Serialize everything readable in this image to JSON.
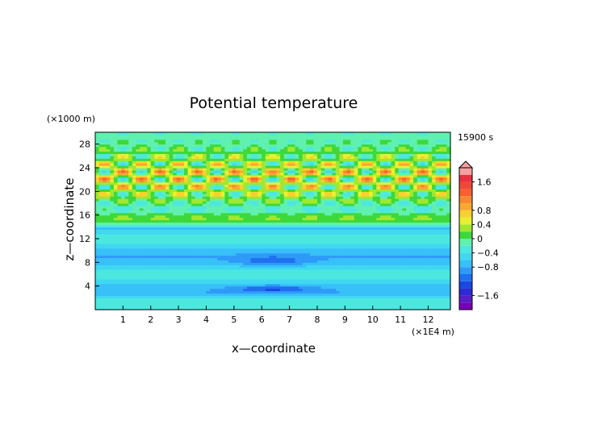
{
  "chart_data": {
    "type": "heatmap",
    "title": "Potential temperature",
    "xlabel": "x—coordinate",
    "ylabel": "z—coordinate",
    "x_unit": "(×1E4 m)",
    "y_unit": "(×1000 m)",
    "time_label": "15900 s",
    "xlim": [
      0,
      12.8
    ],
    "ylim": [
      0,
      30
    ],
    "x_ticks": [
      1,
      2,
      3,
      4,
      5,
      6,
      7,
      8,
      9,
      10,
      11,
      12
    ],
    "y_ticks": [
      4,
      8,
      12,
      16,
      20,
      24,
      28
    ],
    "grid": false,
    "colorbar": {
      "levels": [
        -2.0,
        -1.8,
        -1.6,
        -1.4,
        -1.2,
        -1.0,
        -0.8,
        -0.6,
        -0.4,
        -0.2,
        0.0,
        0.2,
        0.4,
        0.6,
        0.8,
        1.0,
        1.2,
        1.4,
        1.6,
        1.8,
        2.0
      ],
      "colors": [
        "#7a00b8",
        "#5a1ec8",
        "#2a2ad8",
        "#1848e0",
        "#2070f0",
        "#2f9af8",
        "#38c0f8",
        "#40d8f0",
        "#4ce8e0",
        "#60f0b0",
        "#3ed83a",
        "#a0e830",
        "#e8f030",
        "#f8d030",
        "#f8a830",
        "#f88830",
        "#f86030",
        "#f04838",
        "#e83040",
        "#f8a0a0"
      ],
      "tick_values": [
        1.6,
        0.8,
        0.4,
        0,
        -0.4,
        -0.8,
        -1.6
      ],
      "tick_labels": [
        "1.6",
        "0.8",
        "0.4",
        "0",
        "−0.4",
        "−0.8",
        "−1.6"
      ]
    }
  }
}
